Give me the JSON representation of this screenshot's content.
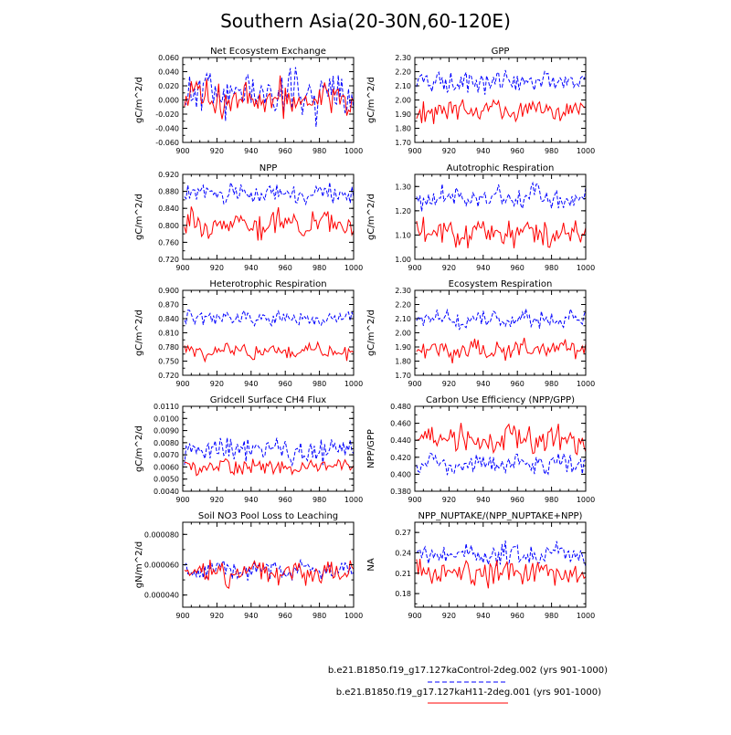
{
  "title": "Southern Asia(20-30N,60-120E)",
  "legend": [
    {
      "label": "b.e21.B1850.f19_g17.127kaControl-2deg.002 (yrs 901-1000)",
      "color": "#0000ff",
      "dash": "dashed"
    },
    {
      "label": "b.e21.B1850.f19_g17.127kaH11-2deg.001 (yrs 901-1000)",
      "color": "#ff0000",
      "dash": "solid"
    }
  ],
  "chart_data": [
    {
      "type": "line",
      "title": "Net Ecosystem Exchange",
      "ylabel": "gC/m^2/d",
      "xlim": [
        900,
        1000
      ],
      "ylim": [
        -0.06,
        0.06
      ],
      "yticks": [
        "-0.060",
        "-0.040",
        "-0.020",
        "0.000",
        "0.020",
        "0.040",
        "0.060"
      ],
      "xticks": [
        "900",
        "920",
        "940",
        "960",
        "980",
        "1000"
      ],
      "series": [
        {
          "name": "Control",
          "mean": 0.01,
          "amp": 0.022,
          "seed": 11
        },
        {
          "name": "H11",
          "mean": 0.002,
          "amp": 0.018,
          "seed": 12
        }
      ]
    },
    {
      "type": "line",
      "title": "GPP",
      "ylabel": "gC/m^2/d",
      "xlim": [
        900,
        1000
      ],
      "ylim": [
        1.7,
        2.3
      ],
      "yticks": [
        "1.70",
        "1.80",
        "1.90",
        "2.00",
        "2.10",
        "2.20",
        "2.30"
      ],
      "xticks": [
        "900",
        "920",
        "940",
        "960",
        "980",
        "1000"
      ],
      "series": [
        {
          "name": "Control",
          "mean": 2.13,
          "amp": 0.05,
          "seed": 21
        },
        {
          "name": "H11",
          "mean": 1.93,
          "amp": 0.05,
          "seed": 22
        }
      ]
    },
    {
      "type": "line",
      "title": "NPP",
      "ylabel": "gC/m^2/d",
      "xlim": [
        900,
        1000
      ],
      "ylim": [
        0.72,
        0.92
      ],
      "yticks": [
        "0.720",
        "0.760",
        "0.800",
        "0.840",
        "0.880",
        "0.920"
      ],
      "xticks": [
        "900",
        "920",
        "940",
        "960",
        "980",
        "1000"
      ],
      "series": [
        {
          "name": "Control",
          "mean": 0.875,
          "amp": 0.015,
          "seed": 31
        },
        {
          "name": "H11",
          "mean": 0.805,
          "amp": 0.02,
          "seed": 32
        }
      ]
    },
    {
      "type": "line",
      "title": "Autotrophic Respiration",
      "ylabel": "gC/m^2/d",
      "xlim": [
        900,
        1000
      ],
      "ylim": [
        1.0,
        1.35
      ],
      "yticks": [
        "1.00",
        "1.10",
        "1.20",
        "1.30"
      ],
      "xticks": [
        "900",
        "920",
        "940",
        "960",
        "980",
        "1000"
      ],
      "series": [
        {
          "name": "Control",
          "mean": 1.25,
          "amp": 0.035,
          "seed": 41
        },
        {
          "name": "H11",
          "mean": 1.11,
          "amp": 0.04,
          "seed": 42
        }
      ]
    },
    {
      "type": "line",
      "title": "Heterotrophic Respiration",
      "ylabel": "gC/m^2/d",
      "xlim": [
        900,
        1000
      ],
      "ylim": [
        0.72,
        0.9
      ],
      "yticks": [
        "0.720",
        "0.750",
        "0.780",
        "0.810",
        "0.840",
        "0.870",
        "0.900"
      ],
      "xticks": [
        "900",
        "920",
        "940",
        "960",
        "980",
        "1000"
      ],
      "series": [
        {
          "name": "Control",
          "mean": 0.84,
          "amp": 0.012,
          "seed": 51
        },
        {
          "name": "H11",
          "mean": 0.77,
          "amp": 0.013,
          "seed": 52
        }
      ]
    },
    {
      "type": "line",
      "title": "Ecosystem Respiration",
      "ylabel": "gC/m^2/d",
      "xlim": [
        900,
        1000
      ],
      "ylim": [
        1.7,
        2.3
      ],
      "yticks": [
        "1.70",
        "1.80",
        "1.90",
        "2.00",
        "2.10",
        "2.20",
        "2.30"
      ],
      "xticks": [
        "900",
        "920",
        "940",
        "960",
        "980",
        "1000"
      ],
      "series": [
        {
          "name": "Control",
          "mean": 2.09,
          "amp": 0.045,
          "seed": 61
        },
        {
          "name": "H11",
          "mean": 1.88,
          "amp": 0.045,
          "seed": 62
        }
      ]
    },
    {
      "type": "line",
      "title": "Gridcell Surface CH4 Flux",
      "ylabel": "gC/m^2/d",
      "xlim": [
        900,
        1000
      ],
      "ylim": [
        0.004,
        0.011
      ],
      "yticks": [
        "0.0040",
        "0.0050",
        "0.0060",
        "0.0070",
        "0.0080",
        "0.0090",
        "0.0100",
        "0.0110"
      ],
      "xticks": [
        "900",
        "920",
        "940",
        "960",
        "980",
        "1000"
      ],
      "series": [
        {
          "name": "Control",
          "mean": 0.0075,
          "amp": 0.0008,
          "seed": 71
        },
        {
          "name": "H11",
          "mean": 0.006,
          "amp": 0.0005,
          "seed": 72
        }
      ]
    },
    {
      "type": "line",
      "title": "Carbon Use Efficiency (NPP/GPP)",
      "ylabel": "NPP/GPP",
      "xlim": [
        900,
        1000
      ],
      "ylim": [
        0.38,
        0.48
      ],
      "yticks": [
        "0.380",
        "0.400",
        "0.420",
        "0.440",
        "0.460",
        "0.480"
      ],
      "xticks": [
        "900",
        "920",
        "940",
        "960",
        "980",
        "1000"
      ],
      "series": [
        {
          "name": "Control",
          "mean": 0.412,
          "amp": 0.009,
          "seed": 81
        },
        {
          "name": "H11",
          "mean": 0.44,
          "amp": 0.012,
          "seed": 82
        }
      ]
    },
    {
      "type": "line",
      "title": "Soil NO3 Pool Loss to Leaching",
      "ylabel": "gN/m^2/d",
      "xlim": [
        900,
        1000
      ],
      "ylim": [
        3.2e-05,
        8.8e-05
      ],
      "yticks": [
        "0.000040",
        "0.000060",
        "0.000080"
      ],
      "ytick_values": [
        4e-05,
        6e-05,
        8e-05
      ],
      "xticks": [
        "900",
        "920",
        "940",
        "960",
        "980",
        "1000"
      ],
      "series": [
        {
          "name": "Control",
          "mean": 5.6e-05,
          "amp": 4.5e-06,
          "seed": 91
        },
        {
          "name": "H11",
          "mean": 5.5e-05,
          "amp": 5e-06,
          "seed": 92
        }
      ]
    },
    {
      "type": "line",
      "title": "NPP_NUPTAKE/(NPP_NUPTAKE+NPP)",
      "ylabel": "NA",
      "xlim": [
        900,
        1000
      ],
      "ylim": [
        0.16,
        0.285
      ],
      "yticks": [
        "0.18",
        "0.21",
        "0.24",
        "0.27"
      ],
      "ytick_values": [
        0.18,
        0.21,
        0.24,
        0.27
      ],
      "xticks": [
        "900",
        "920",
        "940",
        "960",
        "980",
        "1000"
      ],
      "series": [
        {
          "name": "Control",
          "mean": 0.238,
          "amp": 0.012,
          "seed": 101
        },
        {
          "name": "H11",
          "mean": 0.21,
          "amp": 0.014,
          "seed": 102
        }
      ]
    }
  ]
}
